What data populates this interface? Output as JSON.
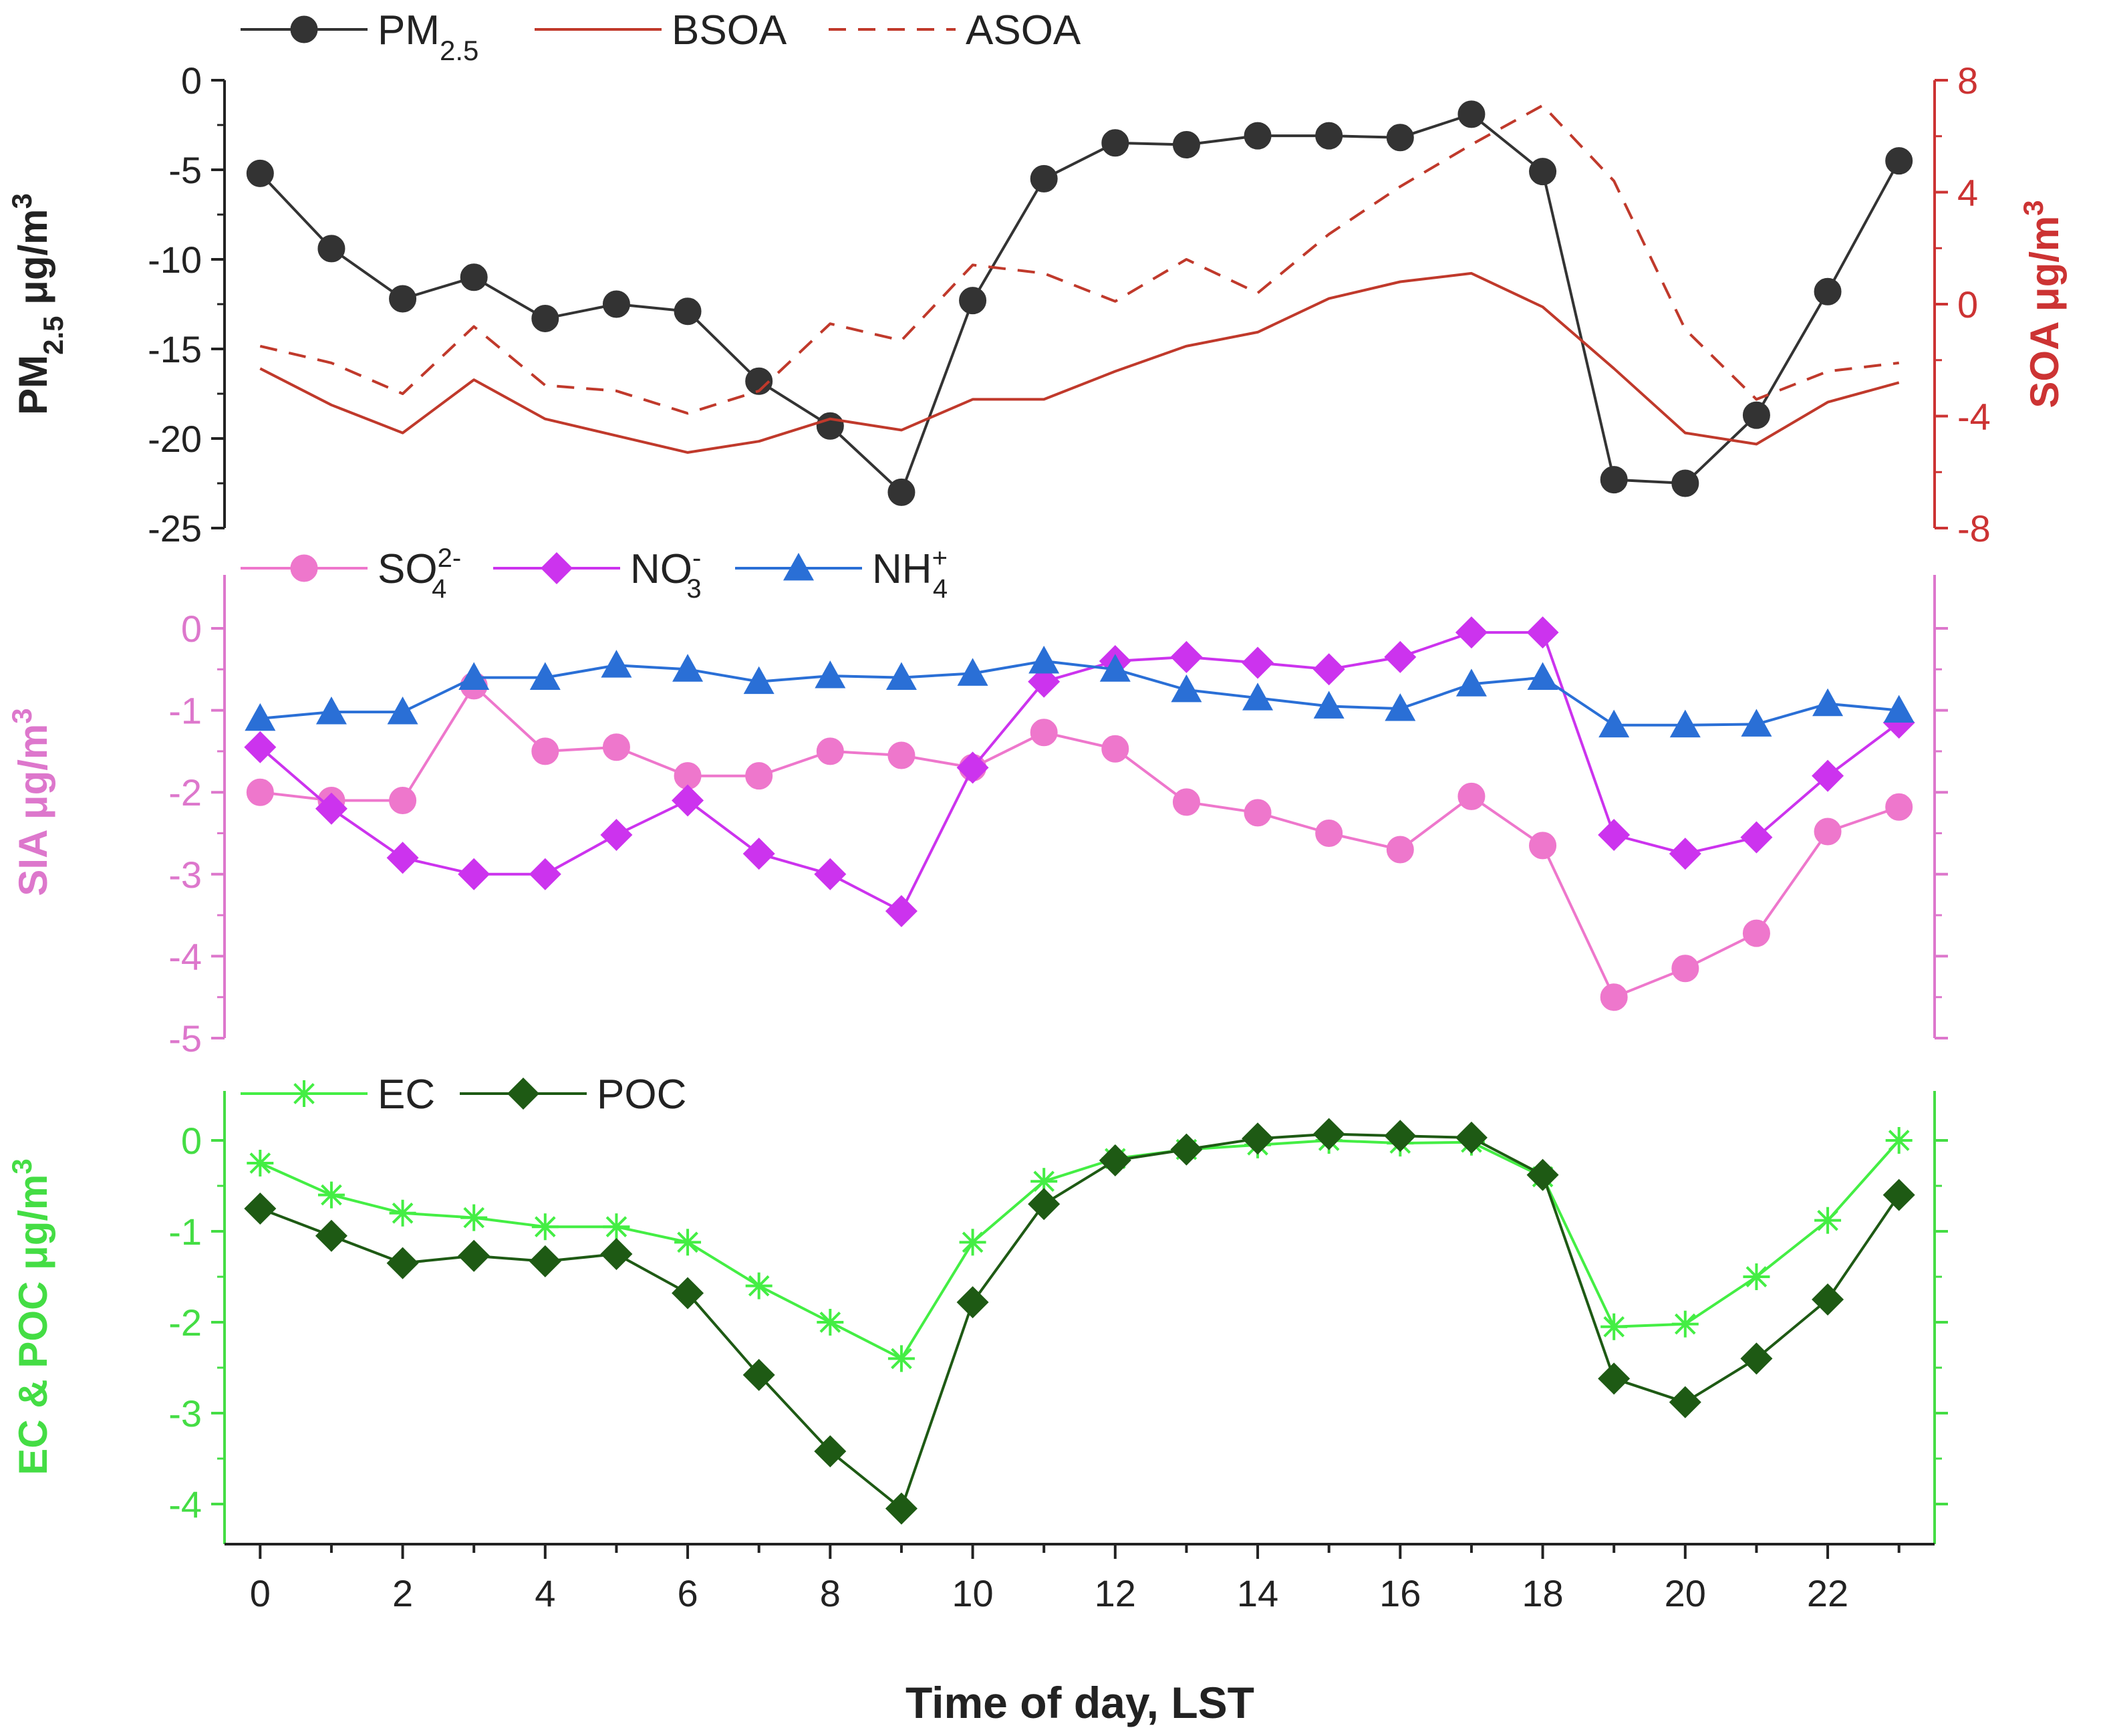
{
  "colors": {
    "pm25": "#333333",
    "soa": "#c0392b",
    "so4": "#ee77cc",
    "no3": "#cc33ee",
    "nh4": "#2a6fd6",
    "ec": "#44ee44",
    "poc": "#1e5a14",
    "axis_black": "#222222",
    "axis_soa": "#cc3333",
    "axis_sia": "#dd77cc",
    "axis_ec": "#44dd44"
  },
  "chart_data": [
    {
      "id": "top",
      "type": "line",
      "ylabel_left": {
        "main": "PM",
        "sub": "2.5",
        "rest": " μg/m",
        "sup": "3"
      },
      "ylabel_right": {
        "main": "SOA μg/m",
        "sup": "3"
      },
      "ylim_left": [
        -25,
        0
      ],
      "yticks_left": [
        0,
        -5,
        -10,
        -15,
        -20,
        -25
      ],
      "ylim_right": [
        -8,
        8
      ],
      "yticks_right": [
        8,
        4,
        0,
        -4,
        -8
      ],
      "legend": [
        {
          "key": "pm25",
          "main": "PM",
          "sub": "2.5"
        },
        {
          "key": "bsoa",
          "main": "BSOA"
        },
        {
          "key": "asoa",
          "main": "ASOA"
        }
      ],
      "series": [
        {
          "name": "PM2.5",
          "key": "pm25",
          "axis": "left",
          "marker": "circle",
          "values": [
            -5.2,
            -9.4,
            -12.2,
            -11.0,
            -13.3,
            -12.5,
            -12.9,
            -16.8,
            -19.3,
            -23.0,
            -12.3,
            -5.5,
            -3.5,
            -3.6,
            -3.1,
            -3.1,
            -3.2,
            -1.9,
            -5.1,
            -22.3,
            -22.5,
            -18.7,
            -11.8,
            -4.5
          ]
        },
        {
          "name": "BSOA",
          "key": "bsoa",
          "axis": "right",
          "marker": "none",
          "dash": false,
          "values": [
            -2.3,
            -3.6,
            -4.6,
            -2.7,
            -4.1,
            -4.7,
            -5.3,
            -4.9,
            -4.1,
            -4.5,
            -3.4,
            -3.4,
            -2.4,
            -1.5,
            -1.0,
            0.2,
            0.8,
            1.1,
            -0.1,
            -2.3,
            -4.6,
            -5.0,
            -3.5,
            -2.8
          ]
        },
        {
          "name": "ASOA",
          "key": "asoa",
          "axis": "right",
          "marker": "none",
          "dash": true,
          "values": [
            -1.5,
            -2.1,
            -3.2,
            -0.8,
            -2.9,
            -3.1,
            -3.9,
            -3.1,
            -0.7,
            -1.3,
            1.4,
            1.1,
            0.1,
            1.6,
            0.4,
            2.5,
            4.2,
            5.7,
            7.1,
            4.4,
            -0.9,
            -3.4,
            -2.4,
            -2.1
          ]
        }
      ]
    },
    {
      "id": "middle",
      "type": "line",
      "ylabel_left": {
        "main": "SIA μg/m",
        "sup": "3"
      },
      "ylim_left": [
        -5,
        0.5
      ],
      "yticks_left": [
        0,
        -1,
        -2,
        -3,
        -4,
        -5
      ],
      "legend": [
        {
          "key": "so4",
          "main": "SO",
          "sub": "4",
          "sup": "2-"
        },
        {
          "key": "no3",
          "main": "NO",
          "sub": "3",
          "sup": "-"
        },
        {
          "key": "nh4",
          "main": "NH",
          "sub": "4",
          "sup": "+"
        }
      ],
      "series": [
        {
          "name": "SO4 2-",
          "key": "so4",
          "marker": "circle",
          "values": [
            -2.0,
            -2.1,
            -2.1,
            -0.7,
            -1.5,
            -1.45,
            -1.8,
            -1.8,
            -1.5,
            -1.55,
            -1.7,
            -1.27,
            -1.47,
            -2.12,
            -2.25,
            -2.5,
            -2.7,
            -2.05,
            -2.65,
            -4.5,
            -4.15,
            -3.72,
            -2.48,
            -2.18
          ]
        },
        {
          "name": "NO3 -",
          "key": "no3",
          "marker": "diamond",
          "values": [
            -1.45,
            -2.2,
            -2.8,
            -3.0,
            -3.0,
            -2.52,
            -2.1,
            -2.75,
            -3.0,
            -3.45,
            -1.7,
            -0.65,
            -0.4,
            -0.35,
            -0.42,
            -0.5,
            -0.35,
            -0.05,
            -0.05,
            -2.52,
            -2.75,
            -2.55,
            -1.8,
            -1.15
          ]
        },
        {
          "name": "NH4 +",
          "key": "nh4",
          "marker": "triangle",
          "values": [
            -1.1,
            -1.02,
            -1.02,
            -0.6,
            -0.6,
            -0.45,
            -0.5,
            -0.65,
            -0.58,
            -0.6,
            -0.55,
            -0.4,
            -0.5,
            -0.75,
            -0.85,
            -0.95,
            -0.98,
            -0.68,
            -0.6,
            -1.18,
            -1.18,
            -1.17,
            -0.92,
            -1.0
          ]
        }
      ]
    },
    {
      "id": "bottom",
      "type": "line",
      "ylabel_left": {
        "main": "EC & POC μg/m",
        "sup": "3"
      },
      "ylim_left": [
        -4.5,
        0.5
      ],
      "yticks_left": [
        0,
        -1,
        -2,
        -3,
        -4
      ],
      "xlabel": "Time of day, LST",
      "xlim": [
        -0.5,
        23.5
      ],
      "xticks": [
        0,
        2,
        4,
        6,
        8,
        10,
        12,
        14,
        16,
        18,
        20,
        22
      ],
      "legend": [
        {
          "key": "ec",
          "main": "EC"
        },
        {
          "key": "poc",
          "main": "POC"
        }
      ],
      "series": [
        {
          "name": "EC",
          "key": "ec",
          "marker": "star",
          "values": [
            -0.25,
            -0.6,
            -0.8,
            -0.85,
            -0.95,
            -0.95,
            -1.12,
            -1.6,
            -2.0,
            -2.4,
            -1.12,
            -0.45,
            -0.2,
            -0.1,
            -0.05,
            0.0,
            -0.03,
            -0.02,
            -0.4,
            -2.05,
            -2.02,
            -1.5,
            -0.88,
            0.0
          ]
        },
        {
          "name": "POC",
          "key": "poc",
          "marker": "diamond",
          "values": [
            -0.75,
            -1.05,
            -1.35,
            -1.27,
            -1.33,
            -1.25,
            -1.68,
            -2.58,
            -3.42,
            -4.05,
            -1.78,
            -0.7,
            -0.22,
            -0.1,
            0.02,
            0.07,
            0.05,
            0.03,
            -0.38,
            -2.62,
            -2.88,
            -2.4,
            -1.75,
            -0.6
          ]
        }
      ]
    }
  ]
}
